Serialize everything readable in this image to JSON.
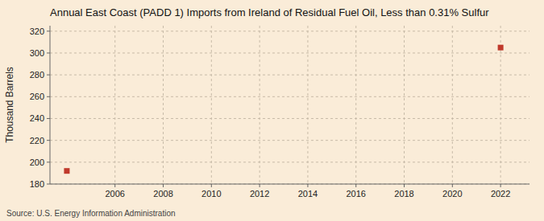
{
  "chart_data": {
    "type": "scatter",
    "title": "Annual East Coast (PADD 1) Imports from Ireland of Residual Fuel Oil, Less than 0.31% Sulfur",
    "y_label": "Thousand Barrels",
    "source": "Source: U.S. Energy Information Administration",
    "x": [
      2004,
      2022
    ],
    "values": [
      192,
      305
    ],
    "color": "#c0392b",
    "marker": "square",
    "xlim": [
      2003.3,
      2023.2
    ],
    "ylim": [
      180,
      325
    ],
    "xticks": [
      2006,
      2008,
      2010,
      2012,
      2014,
      2016,
      2018,
      2020,
      2022
    ],
    "yticks": [
      180,
      200,
      220,
      240,
      260,
      280,
      300,
      320
    ],
    "grid": true
  }
}
